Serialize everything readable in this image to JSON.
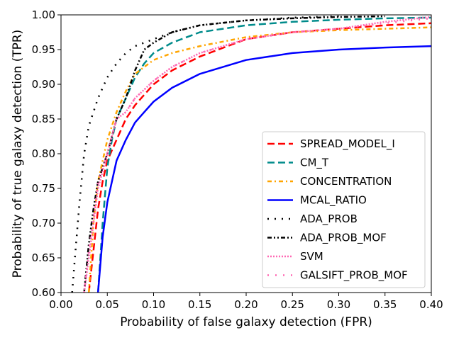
{
  "chart_data": {
    "type": "line",
    "title": "",
    "xlabel": "Probability of false galaxy detection (FPR)",
    "ylabel": "Probability of true galaxy detection (TPR)",
    "xlim": [
      0.0,
      0.4
    ],
    "ylim": [
      0.6,
      1.0
    ],
    "xticks": [
      "0.00",
      "0.05",
      "0.10",
      "0.15",
      "0.20",
      "0.25",
      "0.30",
      "0.35",
      "0.40"
    ],
    "yticks": [
      "0.60",
      "0.65",
      "0.70",
      "0.75",
      "0.80",
      "0.85",
      "0.90",
      "0.95",
      "1.00"
    ],
    "grid": false,
    "legend_position": "center-right",
    "series": [
      {
        "name": "SPREAD_MODEL_I",
        "color": "#ff0000",
        "dash": "dashed",
        "x": [
          0.03,
          0.035,
          0.04,
          0.045,
          0.05,
          0.06,
          0.07,
          0.08,
          0.1,
          0.12,
          0.15,
          0.2,
          0.25,
          0.3,
          0.35,
          0.4
        ],
        "y": [
          0.6,
          0.66,
          0.72,
          0.76,
          0.79,
          0.82,
          0.85,
          0.87,
          0.9,
          0.92,
          0.94,
          0.965,
          0.975,
          0.98,
          0.985,
          0.988
        ]
      },
      {
        "name": "CM_T",
        "color": "#008b8b",
        "dash": "dashed",
        "x": [
          0.04,
          0.045,
          0.05,
          0.055,
          0.06,
          0.07,
          0.08,
          0.09,
          0.1,
          0.12,
          0.15,
          0.2,
          0.25,
          0.3,
          0.35,
          0.4
        ],
        "y": [
          0.6,
          0.7,
          0.78,
          0.82,
          0.85,
          0.88,
          0.91,
          0.93,
          0.945,
          0.96,
          0.975,
          0.985,
          0.99,
          0.993,
          0.995,
          0.996
        ]
      },
      {
        "name": "CONCENTRATION",
        "color": "#ffa500",
        "dash": "dashdot",
        "x": [
          0.03,
          0.035,
          0.04,
          0.05,
          0.06,
          0.07,
          0.08,
          0.1,
          0.12,
          0.15,
          0.2,
          0.25,
          0.3,
          0.35,
          0.4
        ],
        "y": [
          0.6,
          0.7,
          0.76,
          0.82,
          0.86,
          0.89,
          0.915,
          0.935,
          0.945,
          0.955,
          0.968,
          0.975,
          0.978,
          0.98,
          0.982
        ]
      },
      {
        "name": "MCAL_RATIO",
        "color": "#0000ff",
        "dash": "solid",
        "x": [
          0.04,
          0.045,
          0.05,
          0.055,
          0.06,
          0.07,
          0.08,
          0.09,
          0.1,
          0.12,
          0.15,
          0.2,
          0.25,
          0.3,
          0.35,
          0.4
        ],
        "y": [
          0.6,
          0.68,
          0.73,
          0.76,
          0.79,
          0.82,
          0.845,
          0.86,
          0.875,
          0.895,
          0.915,
          0.935,
          0.945,
          0.95,
          0.953,
          0.955
        ]
      },
      {
        "name": "ADA_PROB",
        "color": "#000000",
        "dash": "dotted",
        "x": [
          0.012,
          0.015,
          0.02,
          0.025,
          0.03,
          0.035,
          0.04,
          0.05,
          0.06,
          0.07,
          0.08,
          0.1,
          0.12,
          0.15,
          0.2,
          0.25,
          0.3
        ],
        "y": [
          0.6,
          0.65,
          0.73,
          0.8,
          0.84,
          0.86,
          0.88,
          0.91,
          0.93,
          0.945,
          0.955,
          0.965,
          0.975,
          0.985,
          0.992,
          0.996,
          0.998
        ]
      },
      {
        "name": "ADA_PROB_MOF",
        "color": "#000000",
        "dash": "dashdotdot",
        "x": [
          0.025,
          0.03,
          0.035,
          0.04,
          0.05,
          0.06,
          0.07,
          0.08,
          0.09,
          0.1,
          0.12,
          0.15,
          0.2,
          0.25,
          0.3,
          0.35
        ],
        "y": [
          0.6,
          0.67,
          0.72,
          0.76,
          0.8,
          0.85,
          0.88,
          0.92,
          0.95,
          0.96,
          0.975,
          0.985,
          0.992,
          0.995,
          0.997,
          0.998
        ]
      },
      {
        "name": "SVM",
        "color": "#ff69b4",
        "dash": "dense-dotted",
        "x": [
          0.025,
          0.03,
          0.035,
          0.04,
          0.05,
          0.06,
          0.07,
          0.08,
          0.1,
          0.12,
          0.15,
          0.2,
          0.25,
          0.3,
          0.35,
          0.4
        ],
        "y": [
          0.6,
          0.65,
          0.7,
          0.75,
          0.8,
          0.85,
          0.86,
          0.88,
          0.905,
          0.925,
          0.945,
          0.965,
          0.975,
          0.98,
          0.99,
          0.997
        ]
      },
      {
        "name": "GALSIFT_PROB_MOF",
        "color": "#ff69b4",
        "dash": "loose-dotted",
        "x": [
          0.025,
          0.03,
          0.035,
          0.04,
          0.05,
          0.06,
          0.07,
          0.08,
          0.1,
          0.12,
          0.15,
          0.2,
          0.25,
          0.3,
          0.35,
          0.4
        ],
        "y": [
          0.6,
          0.66,
          0.71,
          0.76,
          0.8,
          0.85,
          0.86,
          0.88,
          0.905,
          0.925,
          0.945,
          0.965,
          0.975,
          0.98,
          0.988,
          0.995
        ]
      }
    ]
  }
}
